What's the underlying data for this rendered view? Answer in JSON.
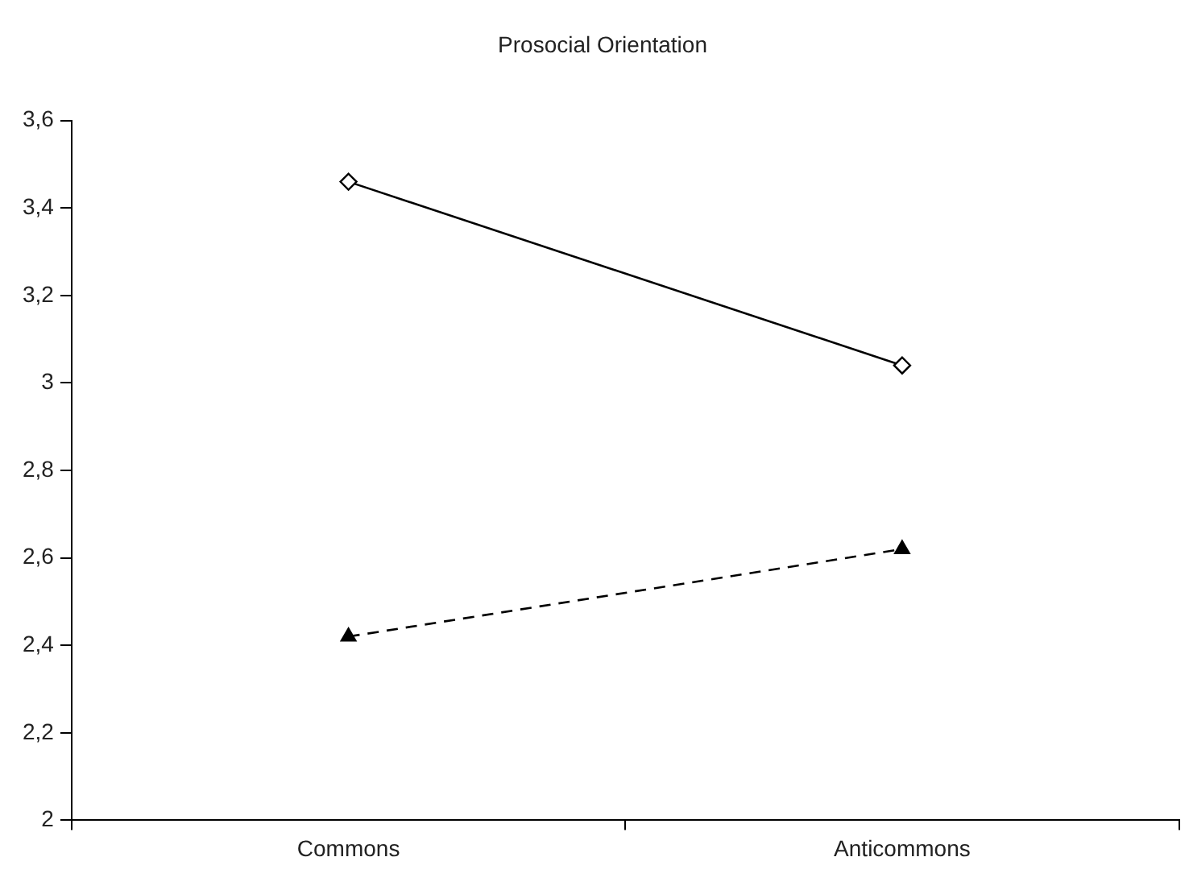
{
  "chart_data": {
    "type": "line",
    "title": "Prosocial Orientation",
    "categories": [
      "Commons",
      "Anticommons"
    ],
    "series": [
      {
        "color": "#000000",
        "values": [
          3.46,
          3.04
        ],
        "marker": "diamond",
        "line_style": "solid"
      },
      {
        "color": "#000000",
        "values": [
          2.42,
          2.62
        ],
        "marker": "triangle",
        "line_style": "dashed"
      }
    ],
    "ylim": [
      2,
      3.6
    ],
    "yticks": [
      2,
      {
        "value": 2.2,
        "label": "2,2"
      },
      {
        "value": 2.4,
        "label": "2,4"
      },
      {
        "value": 2.6,
        "label": "2,6"
      },
      {
        "value": 2.8,
        "label": "2,8"
      },
      3,
      {
        "value": 3.2,
        "label": "3,2"
      },
      {
        "value": 3.4,
        "label": "3,4"
      },
      {
        "value": 3.6,
        "label": "3,6"
      }
    ],
    "grid": false,
    "legend": false
  }
}
